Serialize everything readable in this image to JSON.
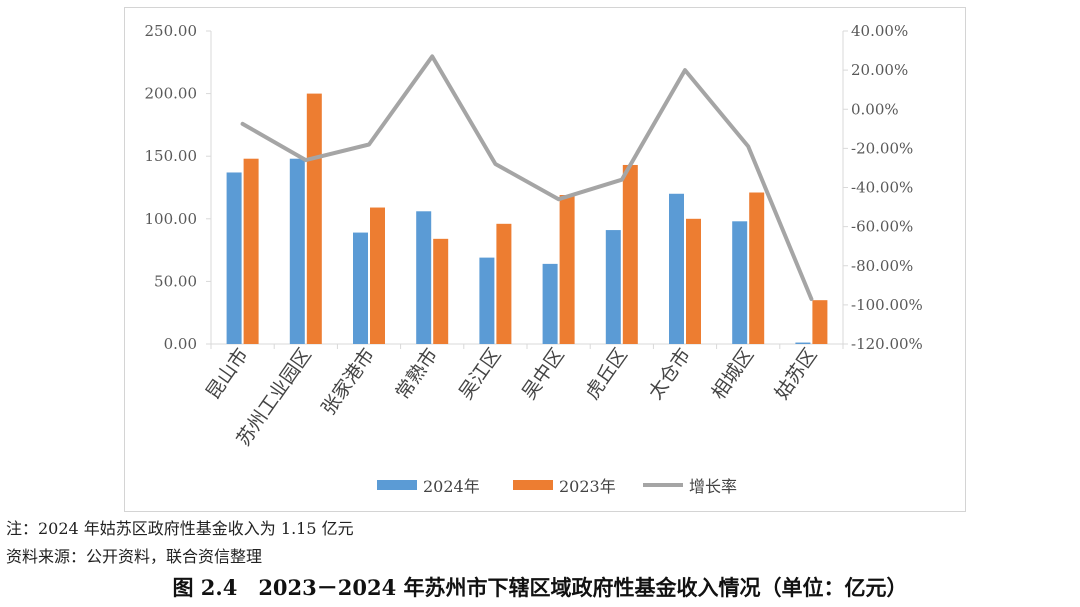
{
  "chart_data": {
    "type": "bar",
    "categories": [
      "昆山市",
      "苏州工业园区",
      "张家港市",
      "常熟市",
      "吴江区",
      "吴中区",
      "虎丘区",
      "太仓市",
      "相城区",
      "姑苏区"
    ],
    "series": [
      {
        "name": "2024年",
        "kind": "bar",
        "axis": "left",
        "color": "#5b9bd5",
        "values": [
          137,
          148,
          89,
          106,
          69,
          64,
          91,
          120,
          98,
          1.15
        ]
      },
      {
        "name": "2023年",
        "kind": "bar",
        "axis": "left",
        "color": "#ed7d31",
        "values": [
          148,
          200,
          109,
          84,
          96,
          119,
          143,
          100,
          121,
          35
        ]
      },
      {
        "name": "增长率",
        "kind": "line",
        "axis": "right",
        "color": "#a5a5a5",
        "values": [
          -7.5,
          -26,
          -18,
          27,
          -28,
          -46,
          -36,
          20,
          -19,
          -97
        ]
      }
    ],
    "y_left": {
      "min": 0,
      "max": 250,
      "step": 50,
      "tick_labels": [
        "0.00",
        "50.00",
        "100.00",
        "150.00",
        "200.00",
        "250.00"
      ]
    },
    "y_right": {
      "min": -120,
      "max": 40,
      "step": 20,
      "tick_labels": [
        "-120.00%",
        "-100.00%",
        "-80.00%",
        "-60.00%",
        "-40.00%",
        "-20.00%",
        "0.00%",
        "20.00%",
        "40.00%"
      ]
    },
    "grid": false,
    "legend_position": "bottom"
  },
  "note": "注：2024 年姑苏区政府性基金收入为 1.15 亿元",
  "source": "资料来源：公开资料，联合资信整理",
  "caption": "图 2.4　2023－2024 年苏州市下辖区域政府性基金收入情况（单位：亿元）"
}
